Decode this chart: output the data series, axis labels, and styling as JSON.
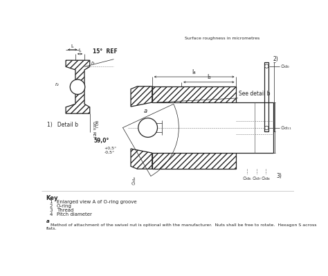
{
  "surface_roughness_text": "Surface roughness in micrometres",
  "key_title": "Key",
  "key_items": [
    [
      "1",
      "Enlarged view A of O-ring groove"
    ],
    [
      "2",
      "O-ring"
    ],
    [
      "3",
      "Thread"
    ],
    [
      "4",
      "Pitch diameter"
    ]
  ],
  "footnote_a": "a",
  "footnote_text": "   Method of attachment of the swivel nut is optional with the manufacturer.  Nuts shall be free to rotate.  Hexagon S across\nflats.",
  "label_detail": "1)   Detail b",
  "label_15_ref": "15°  REF",
  "label_59": "59,0°",
  "label_59b": "+0,5°",
  "label_59c": "-0,5°",
  "label_see_detail_b": "See detail b",
  "label_2": "2)",
  "label_3": "3)",
  "label_a": "a",
  "label_l4": "l₄",
  "label_l3": "l₃",
  "label_ls": "lₛ",
  "label_r1": "r₁",
  "label_r2": "r₂",
  "lc": "#222222"
}
